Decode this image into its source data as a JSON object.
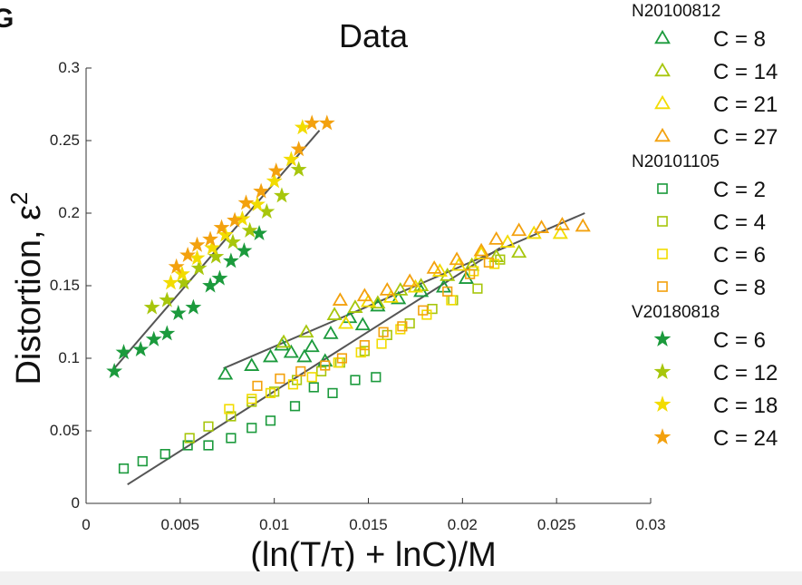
{
  "panel_letter": "G",
  "chart_data": {
    "type": "scatter",
    "title": "Data",
    "xlabel": "(ln(T/τ) + lnC)/M",
    "ylabel": "Distortion, ε",
    "ylabel_sup": "2",
    "xlim": [
      0,
      0.03
    ],
    "ylim": [
      0,
      0.3
    ],
    "xticks": [
      0,
      0.005,
      0.01,
      0.015,
      0.02,
      0.025,
      0.03
    ],
    "xtick_labels": [
      "0",
      "0.005",
      "0.01",
      "0.015",
      "0.02",
      "0.025",
      "0.03"
    ],
    "yticks": [
      0,
      0.05,
      0.1,
      0.15,
      0.2,
      0.25,
      0.3
    ],
    "ytick_labels": [
      "0",
      "0.05",
      "0.1",
      "0.15",
      "0.2",
      "0.25",
      "0.3"
    ],
    "grid": false,
    "legend_position": "right",
    "groups": [
      {
        "name": "N20100812",
        "marker": "triangle",
        "series": [
          {
            "name": "C = 8",
            "color": "#1b9a3c",
            "points": [
              [
                0.0074,
                0.089
              ],
              [
                0.0088,
                0.095
              ],
              [
                0.0098,
                0.101
              ],
              [
                0.0104,
                0.109
              ],
              [
                0.0109,
                0.104
              ],
              [
                0.0116,
                0.101
              ],
              [
                0.012,
                0.108
              ],
              [
                0.0127,
                0.098
              ],
              [
                0.013,
                0.117
              ],
              [
                0.014,
                0.128
              ],
              [
                0.0147,
                0.123
              ],
              [
                0.0155,
                0.136
              ],
              [
                0.0166,
                0.141
              ],
              [
                0.0178,
                0.146
              ],
              [
                0.019,
                0.149
              ],
              [
                0.0202,
                0.155
              ]
            ]
          },
          {
            "name": "C = 14",
            "color": "#a7c60c",
            "points": [
              [
                0.0105,
                0.111
              ],
              [
                0.0117,
                0.118
              ],
              [
                0.0132,
                0.13
              ],
              [
                0.0143,
                0.135
              ],
              [
                0.0155,
                0.138
              ],
              [
                0.0167,
                0.147
              ],
              [
                0.0178,
                0.15
              ],
              [
                0.0192,
                0.157
              ],
              [
                0.0205,
                0.164
              ],
              [
                0.0218,
                0.17
              ],
              [
                0.023,
                0.173
              ]
            ]
          },
          {
            "name": "C = 21",
            "color": "#f2dc00",
            "points": [
              [
                0.0138,
                0.124
              ],
              [
                0.015,
                0.139
              ],
              [
                0.0162,
                0.142
              ],
              [
                0.0175,
                0.149
              ],
              [
                0.0188,
                0.16
              ],
              [
                0.0198,
                0.164
              ],
              [
                0.021,
                0.172
              ],
              [
                0.0224,
                0.18
              ],
              [
                0.0238,
                0.186
              ],
              [
                0.0252,
                0.186
              ]
            ]
          },
          {
            "name": "C = 27",
            "color": "#f3a10e",
            "points": [
              [
                0.0135,
                0.14
              ],
              [
                0.0148,
                0.143
              ],
              [
                0.016,
                0.147
              ],
              [
                0.0172,
                0.153
              ],
              [
                0.0185,
                0.162
              ],
              [
                0.0197,
                0.168
              ],
              [
                0.021,
                0.174
              ],
              [
                0.0218,
                0.182
              ],
              [
                0.023,
                0.188
              ],
              [
                0.0242,
                0.19
              ],
              [
                0.0253,
                0.192
              ],
              [
                0.0264,
                0.191
              ]
            ]
          }
        ]
      },
      {
        "name": "N20101105",
        "marker": "square",
        "series": [
          {
            "name": "C = 2",
            "color": "#1b9a3c",
            "points": [
              [
                0.002,
                0.024
              ],
              [
                0.003,
                0.029
              ],
              [
                0.0042,
                0.034
              ],
              [
                0.0054,
                0.04
              ],
              [
                0.0065,
                0.04
              ],
              [
                0.0077,
                0.045
              ],
              [
                0.0088,
                0.052
              ],
              [
                0.0098,
                0.057
              ],
              [
                0.0111,
                0.067
              ],
              [
                0.0121,
                0.08
              ],
              [
                0.0131,
                0.076
              ],
              [
                0.0143,
                0.085
              ],
              [
                0.0154,
                0.087
              ]
            ]
          },
          {
            "name": "C = 4",
            "color": "#a7c60c",
            "points": [
              [
                0.0055,
                0.045
              ],
              [
                0.0065,
                0.053
              ],
              [
                0.0077,
                0.06
              ],
              [
                0.0088,
                0.07
              ],
              [
                0.01,
                0.077
              ],
              [
                0.0112,
                0.085
              ],
              [
                0.0125,
                0.091
              ],
              [
                0.0135,
                0.097
              ],
              [
                0.0148,
                0.105
              ],
              [
                0.016,
                0.116
              ],
              [
                0.0172,
                0.124
              ],
              [
                0.0184,
                0.134
              ],
              [
                0.0195,
                0.14
              ],
              [
                0.0208,
                0.148
              ],
              [
                0.022,
                0.168
              ]
            ]
          },
          {
            "name": "C = 6",
            "color": "#f2dc00",
            "points": [
              [
                0.0076,
                0.065
              ],
              [
                0.0088,
                0.072
              ],
              [
                0.0098,
                0.076
              ],
              [
                0.011,
                0.082
              ],
              [
                0.012,
                0.087
              ],
              [
                0.0134,
                0.097
              ],
              [
                0.0146,
                0.104
              ],
              [
                0.0157,
                0.11
              ],
              [
                0.0167,
                0.12
              ],
              [
                0.0181,
                0.13
              ],
              [
                0.0194,
                0.14
              ],
              [
                0.0206,
                0.16
              ],
              [
                0.0217,
                0.165
              ]
            ]
          },
          {
            "name": "C = 8",
            "color": "#f3a10e",
            "points": [
              [
                0.0091,
                0.081
              ],
              [
                0.0103,
                0.086
              ],
              [
                0.0114,
                0.091
              ],
              [
                0.0127,
                0.095
              ],
              [
                0.0136,
                0.1
              ],
              [
                0.0148,
                0.109
              ],
              [
                0.0158,
                0.118
              ],
              [
                0.0168,
                0.122
              ],
              [
                0.0179,
                0.133
              ],
              [
                0.0192,
                0.146
              ],
              [
                0.0204,
                0.158
              ],
              [
                0.0214,
                0.166
              ]
            ]
          }
        ]
      },
      {
        "name": "V20180818",
        "marker": "star",
        "series": [
          {
            "name": "C = 6",
            "color": "#1b9a3c",
            "points": [
              [
                0.0015,
                0.091
              ],
              [
                0.002,
                0.104
              ],
              [
                0.0029,
                0.106
              ],
              [
                0.0036,
                0.113
              ],
              [
                0.0043,
                0.117
              ],
              [
                0.0049,
                0.131
              ],
              [
                0.0057,
                0.135
              ],
              [
                0.0066,
                0.15
              ],
              [
                0.0071,
                0.155
              ],
              [
                0.0077,
                0.167
              ],
              [
                0.0084,
                0.174
              ],
              [
                0.0092,
                0.186
              ]
            ]
          },
          {
            "name": "C = 12",
            "color": "#a7c60c",
            "points": [
              [
                0.0035,
                0.135
              ],
              [
                0.0043,
                0.14
              ],
              [
                0.0052,
                0.152
              ],
              [
                0.006,
                0.162
              ],
              [
                0.0069,
                0.17
              ],
              [
                0.0078,
                0.18
              ],
              [
                0.0087,
                0.188
              ],
              [
                0.0096,
                0.201
              ],
              [
                0.0104,
                0.212
              ],
              [
                0.0113,
                0.23
              ]
            ]
          },
          {
            "name": "C = 18",
            "color": "#f2dc00",
            "points": [
              [
                0.0045,
                0.152
              ],
              [
                0.0051,
                0.158
              ],
              [
                0.0059,
                0.169
              ],
              [
                0.0067,
                0.176
              ],
              [
                0.0074,
                0.185
              ],
              [
                0.0083,
                0.196
              ],
              [
                0.0091,
                0.206
              ],
              [
                0.01,
                0.222
              ],
              [
                0.0109,
                0.237
              ],
              [
                0.0115,
                0.259
              ]
            ]
          },
          {
            "name": "C = 24",
            "color": "#f3a10e",
            "points": [
              [
                0.0048,
                0.163
              ],
              [
                0.0054,
                0.171
              ],
              [
                0.0059,
                0.178
              ],
              [
                0.0066,
                0.182
              ],
              [
                0.0072,
                0.19
              ],
              [
                0.0079,
                0.195
              ],
              [
                0.0085,
                0.207
              ],
              [
                0.0093,
                0.215
              ],
              [
                0.0101,
                0.229
              ],
              [
                0.0113,
                0.244
              ],
              [
                0.012,
                0.262
              ],
              [
                0.0128,
                0.262
              ]
            ]
          }
        ]
      }
    ],
    "fit_lines": [
      [
        [
          0.0015,
          0.093
        ],
        [
          0.0124,
          0.257
        ]
      ],
      [
        [
          0.0073,
          0.093
        ],
        [
          0.0265,
          0.2
        ]
      ],
      [
        [
          0.0022,
          0.013
        ],
        [
          0.022,
          0.176
        ]
      ]
    ]
  }
}
